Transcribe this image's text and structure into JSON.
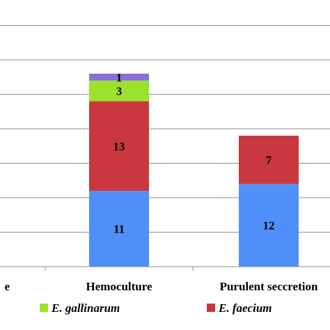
{
  "chart_data": {
    "type": "bar",
    "stacked": true,
    "categories": [
      "…ure",
      "Hemoculture",
      "Purulent seccretion"
    ],
    "series": [
      {
        "name": "",
        "color": "#4f8ff7",
        "values": [
          null,
          11,
          12
        ]
      },
      {
        "name": "E. faecium",
        "color": "#c8383e",
        "values": [
          null,
          13,
          7
        ]
      },
      {
        "name": "E. gallinarum",
        "color": "#9be22d",
        "values": [
          null,
          3,
          null
        ]
      },
      {
        "name": "",
        "color": "#8a6fd6",
        "values": [
          null,
          1,
          null
        ]
      }
    ],
    "ylim": [
      0,
      35
    ],
    "gridlines": true,
    "legend_position": "bottom",
    "legend": [
      {
        "label": "E. gallinarum",
        "color": "#9be22d"
      },
      {
        "label": "E. faecium",
        "color": "#c8383e"
      }
    ]
  }
}
